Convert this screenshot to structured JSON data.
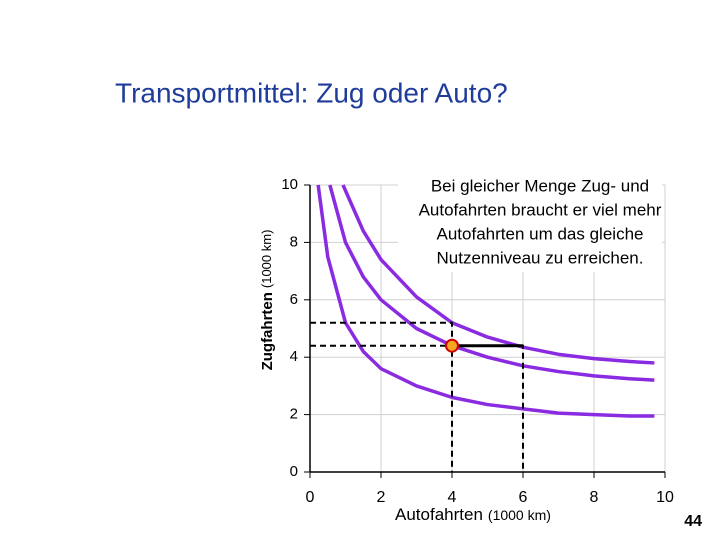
{
  "chart_data": {
    "type": "line",
    "title": "Transportmittel: Zug oder Auto?",
    "xlabel": "Autofahrten",
    "xlabel_unit": "(1000 km)",
    "ylabel": "Zugfahrten",
    "ylabel_unit": "(1000 km)",
    "xlim": [
      0,
      10
    ],
    "ylim": [
      0,
      10
    ],
    "xticks": [
      0,
      2,
      4,
      6,
      8,
      10
    ],
    "yticks": [
      0,
      2,
      4,
      6,
      8,
      10
    ],
    "grid": true,
    "series": [
      {
        "color": "#8a2be2",
        "x": [
          0.23,
          0.5,
          1,
          1.5,
          2,
          3,
          4,
          5,
          6,
          7,
          8,
          9,
          9.7
        ],
        "values": [
          10,
          7.5,
          5.2,
          4.2,
          3.6,
          3.0,
          2.6,
          2.35,
          2.2,
          2.05,
          2.0,
          1.95,
          1.95
        ]
      },
      {
        "color": "#8a2be2",
        "x": [
          0.56,
          1,
          1.5,
          2,
          3,
          4,
          5,
          6,
          7,
          8,
          9,
          9.7
        ],
        "values": [
          10,
          8.0,
          6.8,
          6.0,
          5.0,
          4.4,
          4.0,
          3.7,
          3.5,
          3.35,
          3.25,
          3.2
        ]
      },
      {
        "color": "#8a2be2",
        "x": [
          0.93,
          1.5,
          2,
          3,
          4,
          5,
          6,
          7,
          8,
          9,
          9.7
        ],
        "values": [
          10,
          8.4,
          7.4,
          6.1,
          5.2,
          4.7,
          4.35,
          4.1,
          3.95,
          3.85,
          3.8
        ]
      }
    ],
    "point": {
      "x": 4,
      "y": 4.4
    },
    "guides": [
      {
        "x": 4,
        "y": 5.2
      },
      {
        "x": 6,
        "y": 4.4
      }
    ],
    "annotation": [
      "Bei gleicher Menge Zug- und",
      "Autofahrten braucht er viel mehr",
      "Autofahrten um das gleiche",
      "Nutzenniveau zu erreichen."
    ]
  },
  "page_number": "44"
}
